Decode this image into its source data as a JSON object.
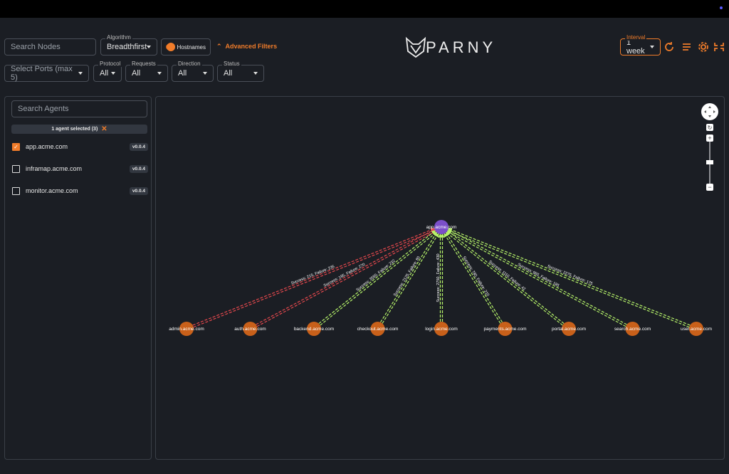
{
  "header": {
    "search_placeholder": "Search Nodes",
    "algorithm": {
      "label": "Algorithm",
      "value": "Breadthfirst"
    },
    "hostnames": "Hostnames",
    "advanced_filters": "Advanced Filters",
    "logo": "PARNY",
    "interval": {
      "label": "Interval",
      "value": "1 week"
    }
  },
  "filters": {
    "ports": "Select Ports (max 5)",
    "items": [
      {
        "label": "Protocol",
        "value": "All"
      },
      {
        "label": "Requests",
        "value": "All"
      },
      {
        "label": "Direction",
        "value": "All"
      },
      {
        "label": "Status",
        "value": "All"
      }
    ]
  },
  "sidebar": {
    "search_placeholder": "Search Agents",
    "selection": "1 agent selected (3)",
    "agents": [
      {
        "name": "app.acme.com",
        "version": "v0.0.4",
        "checked": true
      },
      {
        "name": "inframap.acme.com",
        "version": "v0.0.4",
        "checked": false
      },
      {
        "name": "monitor.acme.com",
        "version": "v0.0.4",
        "checked": false
      }
    ]
  },
  "graph": {
    "center": "app.acme.com",
    "nodes": [
      {
        "label": "admin.acme.com",
        "edge_label": "Success: 215, Failure: 235",
        "color": "#e5484d"
      },
      {
        "label": "auth.acme.com",
        "edge_label": "Success: 195, Failure: 270",
        "color": "#e5484d"
      },
      {
        "label": "backend.acme.com",
        "edge_label": "Success: 3550, Failure: 232",
        "color": "#b6f36a"
      },
      {
        "label": "checkout.acme.com",
        "edge_label": "Success: 2125, Failure: 80",
        "color": "#b6f36a"
      },
      {
        "label": "login.acme.com",
        "edge_label": "Success: 2750, Failure: 430",
        "color": "#b6f36a"
      },
      {
        "label": "payments.acme.com",
        "edge_label": "Success: 780, Failure: 210",
        "color": "#b6f36a"
      },
      {
        "label": "portal.acme.com",
        "edge_label": "Success: 1110, Failure: 42",
        "color": "#b6f36a"
      },
      {
        "label": "search.acme.com",
        "edge_label": "Success: 965, Failure: 185",
        "color": "#b6f36a"
      },
      {
        "label": "user.acme.com",
        "edge_label": "Success: 2275, Failure: 175",
        "color": "#b6f36a"
      }
    ]
  }
}
